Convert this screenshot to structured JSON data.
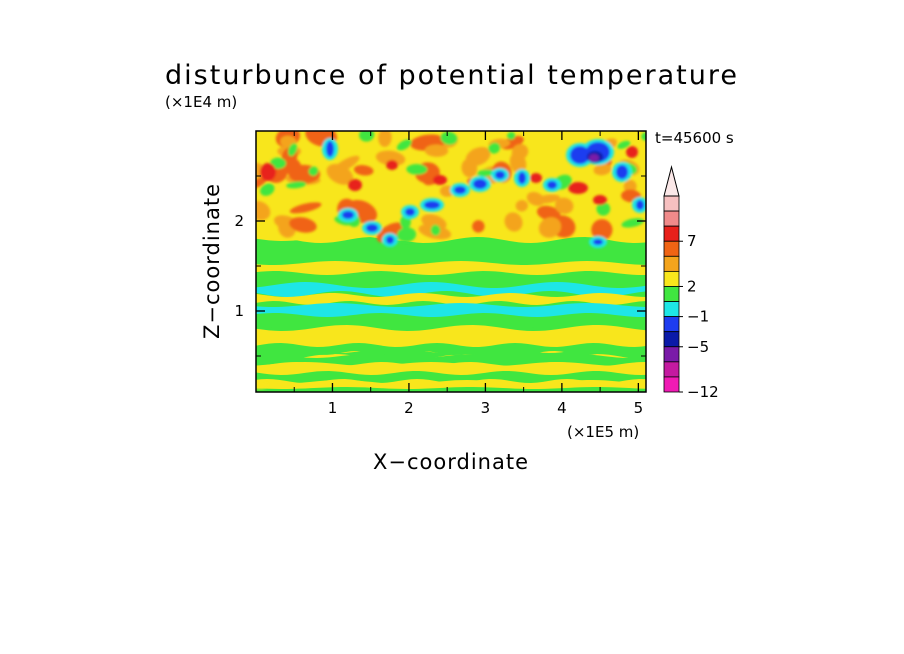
{
  "chart_data": {
    "type": "heatmap",
    "title": "disturbunce of potential temperature",
    "time_label": "t=45600 s",
    "xlabel": "X−coordinate",
    "ylabel": "Z−coordinate",
    "x_unit": "(×1E5 m)",
    "y_unit": "(×1E4 m)",
    "xlim": [
      0,
      5.1
    ],
    "ylim": [
      0.1,
      3.0
    ],
    "x_ticks": [
      "1",
      "2",
      "3",
      "4",
      "5"
    ],
    "x_tick_values": [
      1,
      2,
      3,
      4,
      5
    ],
    "y_ticks": [
      "1",
      "2"
    ],
    "y_tick_values": [
      1,
      2
    ],
    "colorbar": {
      "labels": [
        "7",
        "2",
        "−1",
        "−5",
        "−12"
      ],
      "colors_top_to_bottom": [
        "#f7c0c0",
        "#f08a8a",
        "#e8201a",
        "#f06414",
        "#f4a41c",
        "#f8e61c",
        "#40e640",
        "#1ee6e6",
        "#1e3cf0",
        "#0a1aa8",
        "#7a1aa8",
        "#c41aa0",
        "#f01ab4"
      ],
      "extend": "max"
    }
  }
}
